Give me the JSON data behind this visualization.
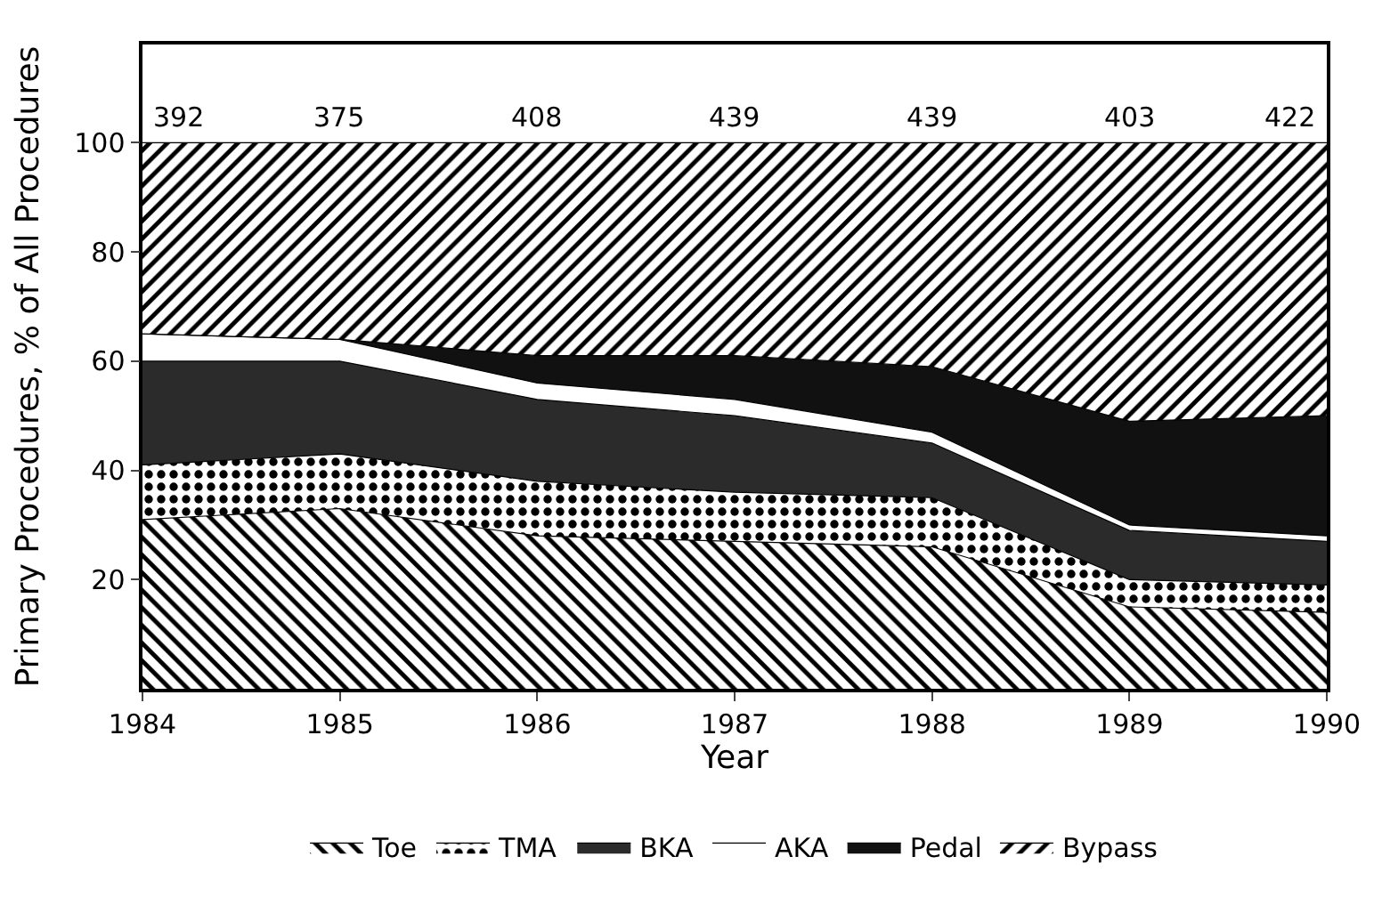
{
  "chart_data": {
    "type": "area",
    "stacked": true,
    "xlabel": "Year",
    "ylabel": "Primary Procedures, % of All Procedures",
    "x": [
      1984,
      1985,
      1986,
      1987,
      1988,
      1989,
      1990
    ],
    "xlim": [
      1984,
      1990
    ],
    "xticks": [
      1984,
      1985,
      1986,
      1987,
      1988,
      1989,
      1990
    ],
    "ylim": [
      0,
      118
    ],
    "yticks": [
      20,
      40,
      60,
      80,
      100
    ],
    "legend": "bottom",
    "series": [
      {
        "name": "Toe",
        "color": "#ffffff",
        "values": [
          31,
          33,
          28,
          27,
          26,
          15,
          14
        ]
      },
      {
        "name": "TMA",
        "color": "#ffffff",
        "values": [
          10,
          10,
          10,
          9,
          9,
          5,
          5
        ]
      },
      {
        "name": "BKA",
        "color": "#2b2b2b",
        "values": [
          19,
          17,
          15,
          14,
          10,
          9,
          8
        ]
      },
      {
        "name": "AKA",
        "color": "#ffffff",
        "values": [
          5,
          4,
          3,
          3,
          2,
          1,
          1
        ]
      },
      {
        "name": "Pedal",
        "color": "#111111",
        "values": [
          0,
          0,
          5,
          8,
          12,
          19,
          22
        ]
      },
      {
        "name": "Bypass",
        "color": "#ffffff",
        "values": [
          35,
          36,
          39,
          39,
          41,
          51,
          50
        ]
      }
    ],
    "annotations": [
      "392",
      "375",
      "408",
      "439",
      "439",
      "403",
      "422"
    ]
  }
}
